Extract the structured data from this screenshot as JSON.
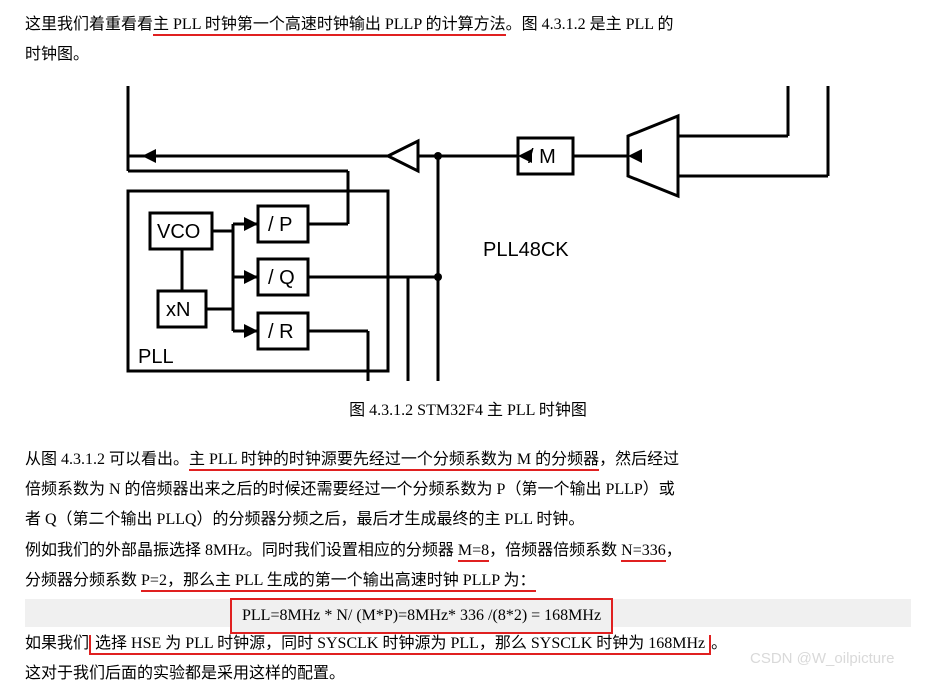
{
  "p1a": "这里我们着重看看",
  "p1b": "主 PLL 时钟第一个高速时钟输出 PLLP 的计算方法",
  "p1c": "。图 4.3.1.2 是主 PLL 的",
  "p1d": "时钟图。",
  "caption": "图 4.3.1.2 STM32F4 主 PLL 时钟图",
  "p2a": "从图 4.3.1.2 可以看出。",
  "p2b": "主 PLL 时钟的时钟源要先经过一个分频系数为 M 的分频器",
  "p2c": "，然后经过",
  "p2d": "倍频系数为 N 的倍频器出来之后的时候还需要经过一个分频系数为 P（第一个输出 PLLP）或",
  "p2e": "者 Q（第二个输出 PLLQ）的分频器分频之后，最后才生成最终的主 PLL 时钟。",
  "p3a": "例如我们的外部晶振选择 8MHz。同时我们设置相应的分频器 ",
  "p3b": "M=8",
  "p3c": "，倍频器倍频系数 ",
  "p3d": "N=336",
  "p3e": "，",
  "p4a": "分频器分频系数 ",
  "p4b": "P=2，那么主 PLL 生成的第一个输出高速时钟 PLLP 为：",
  "formula": "PLL=8MHz * N/ (M*P)=8MHz* 336 /(8*2) = 168MHz",
  "p5a": "如果我们",
  "p5b": "选择 HSE 为 PLL 时钟源，同时 SYSCLK 时钟源为 PLL，那么 SYSCLK 时钟为  168MHz",
  "p5c": "。",
  "p6": "这对于我们后面的实验都是采用这样的配置。",
  "watermark": "CSDN @W_oilpicture",
  "diagram": {
    "labels": {
      "pll": "PLL",
      "vco": "VCO",
      "xn": "xN",
      "p": "/ P",
      "q": "/ Q",
      "r": "/ R",
      "m": "/ M",
      "pll48": "PLL48CK"
    },
    "stroke": "#000000",
    "stroke_width": 3,
    "font_size": 20
  }
}
